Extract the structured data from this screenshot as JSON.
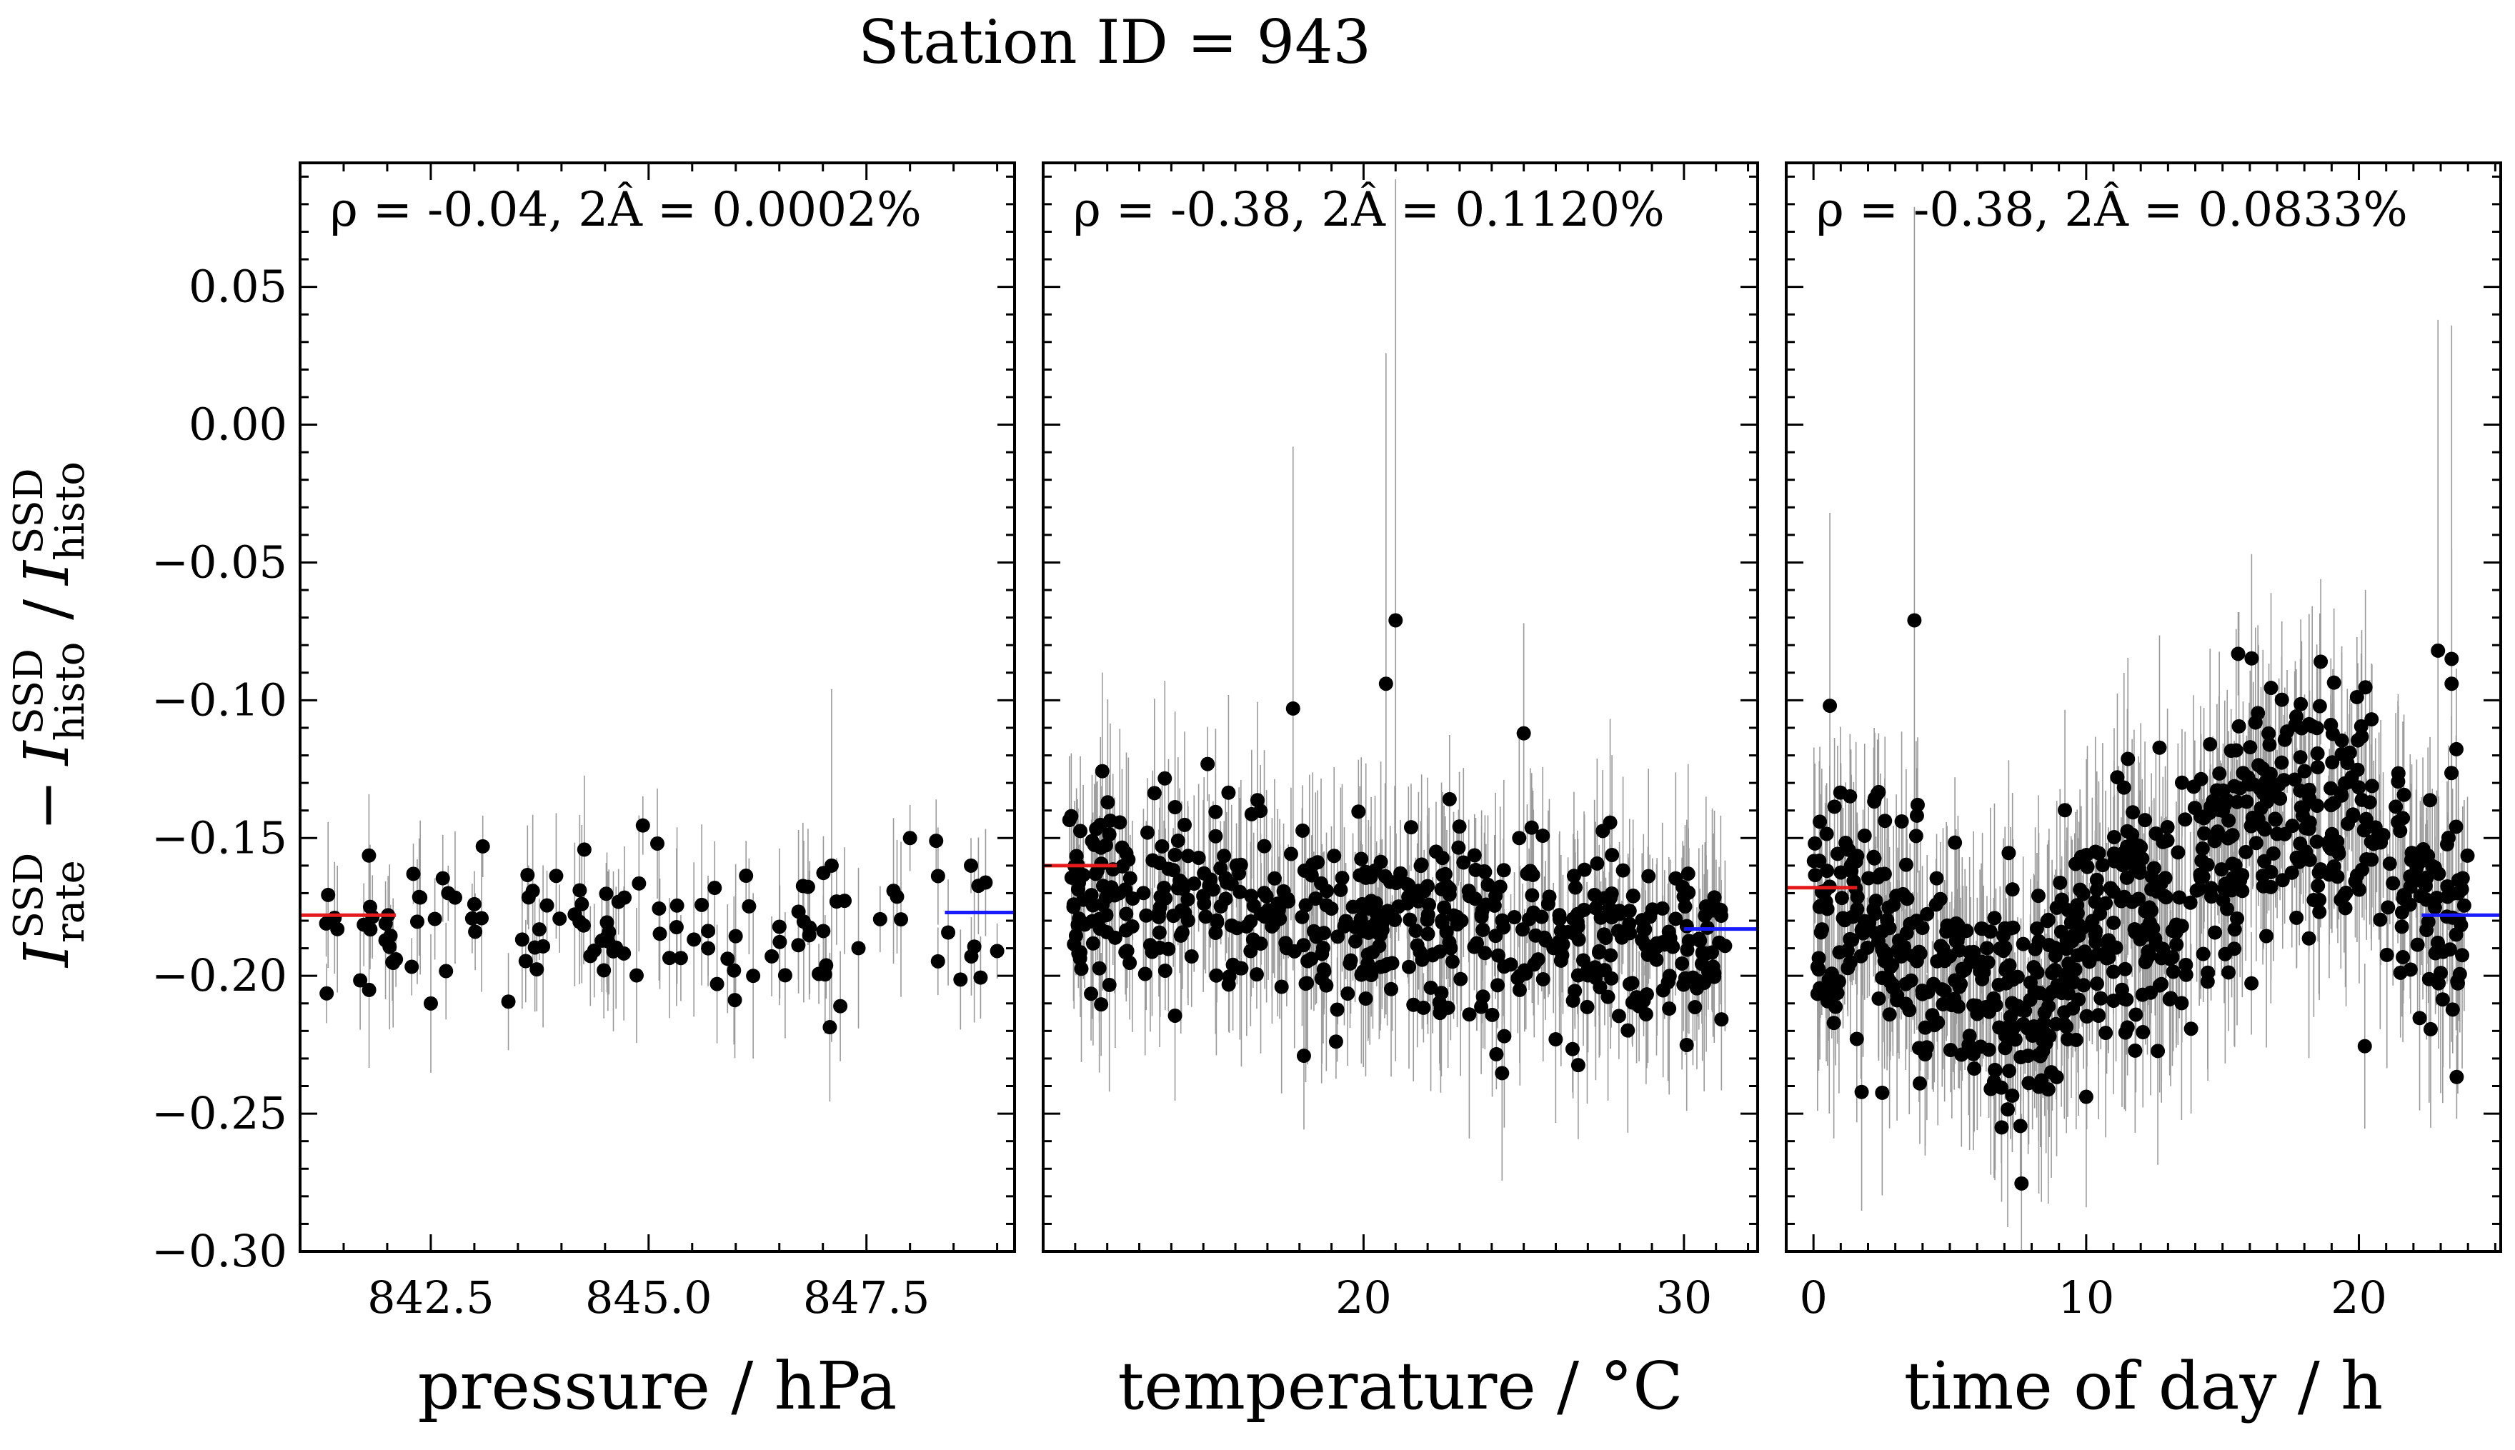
{
  "figure": {
    "title": "Station ID = 943",
    "ylabel": {
      "base": "I",
      "sup": "SSD",
      "rate_sub": "rate",
      "histo_sub": "histo",
      "minus": "−",
      "slash": "/"
    }
  },
  "colors": {
    "left_marker": "#e41a1c",
    "right_marker": "#1a1aff",
    "points": "#000000",
    "errorbars": "#9a9a9a"
  },
  "chart_data": [
    {
      "type": "scatter",
      "xlabel": "pressure / hPa",
      "annotation": "ρ = -0.04, 2Â = 0.0002%",
      "xlim": [
        841.0,
        849.2
      ],
      "ylim": [
        -0.3,
        0.095
      ],
      "xticks": [
        842.5,
        845.0,
        847.5
      ],
      "xticklabels": [
        "842.5",
        "845.0",
        "847.5"
      ],
      "yticks": [
        0.05,
        0.0,
        -0.05,
        -0.1,
        -0.15,
        -0.2,
        -0.25,
        -0.3
      ],
      "yticklabels": [
        "0.05",
        "0.00",
        "−0.05",
        "−0.10",
        "−0.15",
        "−0.20",
        "−0.25",
        "−0.30"
      ],
      "left_level": {
        "y": -0.178,
        "x_range": [
          841.0,
          842.1
        ]
      },
      "right_level": {
        "y": -0.177,
        "x_range": [
          848.4,
          849.2
        ]
      },
      "generated_points": {
        "n": 120,
        "x_range": [
          841.3,
          849.0
        ],
        "center": -0.183,
        "spread": 0.012,
        "err_range": [
          0.01,
          0.03
        ],
        "seed": 11
      },
      "points": [
        {
          "x": 841.3,
          "y": -0.181,
          "err": 0.012
        },
        {
          "x": 842.1,
          "y": -0.194,
          "err": 0.01
        },
        {
          "x": 842.3,
          "y": -0.163,
          "err": 0.011
        },
        {
          "x": 842.7,
          "y": -0.17,
          "err": 0.01
        },
        {
          "x": 843.0,
          "y": -0.174,
          "err": 0.012
        },
        {
          "x": 845.1,
          "y": -0.152,
          "err": 0.02
        },
        {
          "x": 846.2,
          "y": -0.2,
          "err": 0.03
        },
        {
          "x": 847.1,
          "y": -0.16,
          "err": 0.064
        },
        {
          "x": 847.2,
          "y": -0.211,
          "err": 0.02
        },
        {
          "x": 848.0,
          "y": -0.15,
          "err": 0.012
        },
        {
          "x": 848.3,
          "y": -0.151,
          "err": 0.015
        },
        {
          "x": 848.7,
          "y": -0.16,
          "err": 0.01
        },
        {
          "x": 849.0,
          "y": -0.191,
          "err": 0.01
        }
      ]
    },
    {
      "type": "scatter",
      "xlabel": "temperature / °C",
      "annotation": "ρ = -0.38, 2Â = 0.1120%",
      "xlim": [
        10.0,
        32.3
      ],
      "ylim": [
        -0.3,
        0.095
      ],
      "xticks": [
        20,
        30
      ],
      "xticklabels": [
        "20",
        "30"
      ],
      "yticks": [
        0.05,
        0.0,
        -0.05,
        -0.1,
        -0.15,
        -0.2,
        -0.25,
        -0.3
      ],
      "yticklabels": [
        "",
        "",
        "",
        "",
        "",
        "",
        "",
        ""
      ],
      "left_level": {
        "y": -0.16,
        "x_range": [
          10.0,
          12.3
        ]
      },
      "right_level": {
        "y": -0.183,
        "x_range": [
          30.0,
          32.3
        ]
      },
      "generated_points": {
        "n": 520,
        "x_range": [
          10.8,
          31.3
        ],
        "center": -0.168,
        "slope": -0.0012,
        "x0": 10.8,
        "spread": 0.016,
        "err_range": [
          0.012,
          0.04
        ],
        "seed": 23
      },
      "points": [
        {
          "x": 17.8,
          "y": -0.103,
          "err": 0.095
        },
        {
          "x": 20.7,
          "y": -0.094,
          "err": 0.12
        },
        {
          "x": 21.0,
          "y": -0.071,
          "err": 0.16
        },
        {
          "x": 25.0,
          "y": -0.112,
          "err": 0.04
        },
        {
          "x": 23.3,
          "y": -0.214,
          "err": 0.045
        },
        {
          "x": 28.6,
          "y": -0.211,
          "err": 0.02
        }
      ]
    },
    {
      "type": "scatter",
      "xlabel": "time of day / h",
      "annotation": "ρ = -0.38, 2Â = 0.0833%",
      "xlim": [
        -1.0,
        25.2
      ],
      "ylim": [
        -0.3,
        0.095
      ],
      "xticks": [
        0,
        10,
        20
      ],
      "xticklabels": [
        "0",
        "10",
        "20"
      ],
      "yticks": [
        0.05,
        0.0,
        -0.05,
        -0.1,
        -0.15,
        -0.2,
        -0.25,
        -0.3
      ],
      "yticklabels": [
        "",
        "",
        "",
        "",
        "",
        "",
        "",
        ""
      ],
      "left_level": {
        "y": -0.168,
        "x_range": [
          -1.0,
          1.6
        ]
      },
      "right_level": {
        "y": -0.178,
        "x_range": [
          22.3,
          25.2
        ]
      },
      "generated_points": {
        "n": 760,
        "x_range": [
          0.0,
          24.0
        ],
        "center": -0.178,
        "diurnal": true,
        "spread": 0.022,
        "err_range": [
          0.015,
          0.045
        ],
        "seed": 37
      },
      "points": [
        {
          "x": 0.6,
          "y": -0.102,
          "err": 0.07
        },
        {
          "x": 3.7,
          "y": -0.071,
          "err": 0.15
        },
        {
          "x": 6.9,
          "y": -0.255,
          "err": 0.027
        },
        {
          "x": 18.6,
          "y": -0.086,
          "err": 0.03
        },
        {
          "x": 22.9,
          "y": -0.082,
          "err": 0.12
        },
        {
          "x": 23.4,
          "y": -0.094,
          "err": 0.13
        },
        {
          "x": 23.4,
          "y": -0.085,
          "err": 0.04
        }
      ]
    }
  ]
}
